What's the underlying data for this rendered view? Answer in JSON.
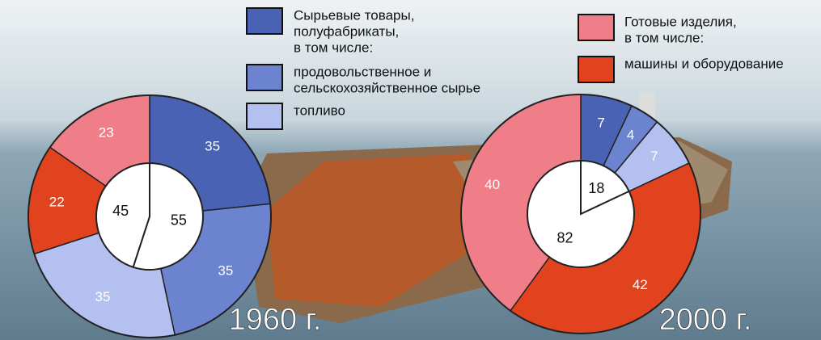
{
  "chart_data": [
    {
      "type": "donut",
      "label": "1960 г.",
      "inner": {
        "values": [
          55,
          45
        ],
        "color": "#ffffff"
      },
      "outer": {
        "values": [
          35,
          35,
          35,
          22,
          23
        ],
        "colors": [
          "#4a62b4",
          "#6c83cf",
          "#b4c0f0",
          "#e2431f",
          "#f07e88"
        ]
      }
    },
    {
      "type": "donut",
      "label": "2000 г.",
      "inner": {
        "values": [
          18,
          82
        ],
        "color": "#ffffff"
      },
      "outer": {
        "values": [
          7,
          4,
          7,
          42,
          40
        ],
        "colors": [
          "#4a62b4",
          "#6c83cf",
          "#b4c0f0",
          "#e2431f",
          "#f07e88"
        ]
      }
    }
  ],
  "legend": [
    {
      "lines": [
        "Сырьевые товары,",
        "полуфабрикаты,",
        "в том числе:"
      ],
      "color": "#4a62b4"
    },
    {
      "lines": [
        "продовольственное и",
        "сельскохозяйственное сырье"
      ],
      "color": "#6c83cf"
    },
    {
      "lines": [
        "топливо"
      ],
      "color": "#b4c0f0"
    },
    {
      "lines": [
        "Готовые изделия,",
        "в том числе:"
      ],
      "color": "#f07e88"
    },
    {
      "lines": [
        "машины и оборудование"
      ],
      "color": "#e2431f"
    }
  ]
}
